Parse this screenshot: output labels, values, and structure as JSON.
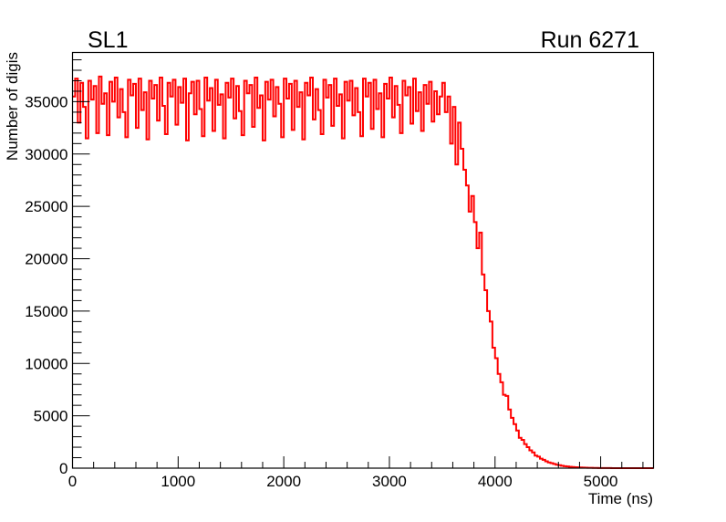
{
  "chart_data": {
    "type": "line",
    "style": "histogram-step",
    "title_left": "SL1",
    "title_right": "Run 6271",
    "xlabel": "Time (ns)",
    "ylabel": "Number of digis",
    "xlim": [
      0,
      5500
    ],
    "ylim": [
      0,
      39700
    ],
    "x_ticks": [
      0,
      1000,
      2000,
      3000,
      4000,
      5000
    ],
    "x_tick_labels": [
      "0",
      "1000",
      "2000",
      "3000",
      "4000",
      "5000"
    ],
    "y_ticks": [
      0,
      5000,
      10000,
      15000,
      20000,
      25000,
      30000,
      35000
    ],
    "y_tick_labels": [
      "0",
      "5000",
      "10000",
      "15000",
      "20000",
      "25000",
      "30000",
      "35000"
    ],
    "grid": false,
    "line_color": "#ff0000",
    "bin_width": 25,
    "values": [
      35500,
      37200,
      33000,
      36800,
      34500,
      31500,
      37000,
      35200,
      36500,
      32000,
      37400,
      34800,
      35800,
      31800,
      36900,
      35000,
      37300,
      33500,
      36200,
      34000,
      31600,
      37100,
      35600,
      36700,
      32500,
      37200,
      34200,
      35900,
      31400,
      37000,
      35300,
      36600,
      33200,
      37300,
      34600,
      31900,
      36800,
      35500,
      37100,
      32800,
      36400,
      34900,
      37200,
      31300,
      35800,
      36900,
      33800,
      37000,
      34300,
      31700,
      37300,
      35100,
      36300,
      32200,
      37100,
      34700,
      35700,
      31500,
      36800,
      35400,
      37200,
      33400,
      36500,
      34100,
      31800,
      37000,
      35800,
      36600,
      32600,
      37300,
      34400,
      35600,
      31300,
      36900,
      35200,
      37100,
      33600,
      36400,
      34800,
      31600,
      37200,
      35300,
      36700,
      32300,
      37000,
      34500,
      35900,
      31400,
      36800,
      35600,
      37300,
      33300,
      36200,
      34200,
      31900,
      37100,
      35400,
      36600,
      32700,
      37200,
      34600,
      35700,
      31500,
      36900,
      35100,
      37000,
      33700,
      36300,
      34000,
      31700,
      37200,
      35500,
      36800,
      32400,
      37100,
      34300,
      35800,
      31600,
      36700,
      35300,
      37300,
      33500,
      36500,
      34700,
      32000,
      37000,
      35600,
      36400,
      32900,
      37200,
      34100,
      35900,
      32200,
      36600,
      34800,
      36900,
      33100,
      36000,
      33800,
      35500,
      36800,
      34000,
      35500,
      31000,
      34500,
      29000,
      33000,
      30500,
      28500,
      27000,
      24500,
      26000,
      23500,
      21000,
      22500,
      18500,
      17000,
      15000,
      14000,
      11500,
      10500,
      9000,
      8200,
      7000,
      6900,
      5600,
      4800,
      4200,
      3600,
      2900,
      2700,
      2300,
      2000,
      1700,
      1500,
      1200,
      1100,
      900,
      800,
      650,
      550,
      480,
      400,
      330,
      280,
      230,
      190,
      160,
      130,
      110,
      90,
      75,
      60,
      50,
      40,
      35,
      28,
      22,
      18,
      15,
      12,
      10,
      8,
      6,
      5,
      4,
      3,
      3,
      2,
      2,
      1,
      1,
      1,
      1,
      0,
      0,
      0,
      0,
      0,
      0
    ]
  }
}
